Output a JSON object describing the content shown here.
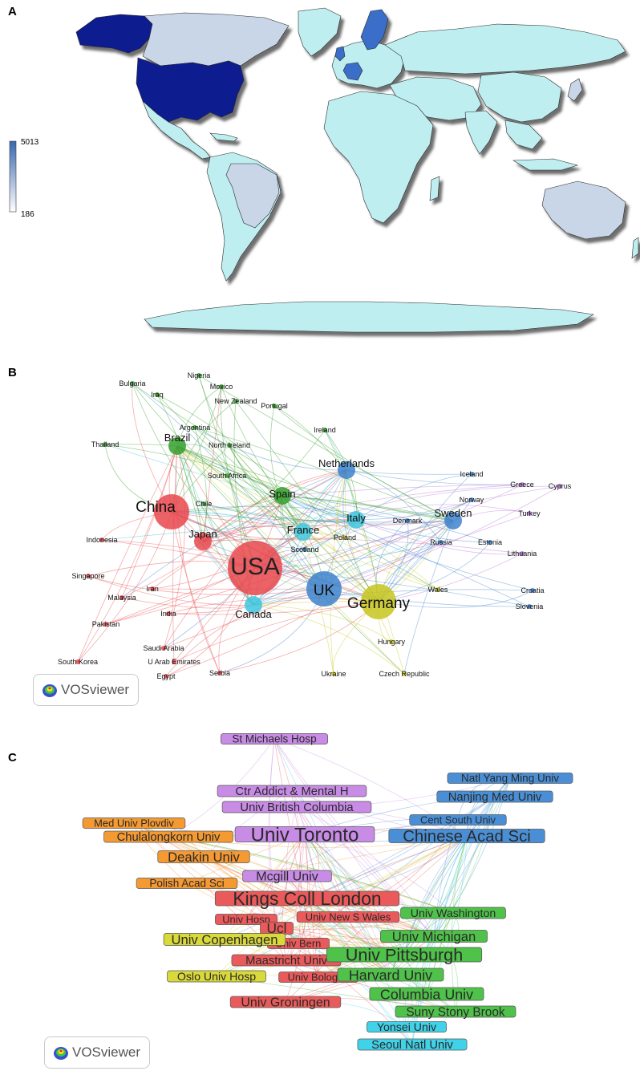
{
  "panels": {
    "a": "A",
    "b": "B",
    "c": "C"
  },
  "map": {
    "legend_max": "5013",
    "legend_min": "186",
    "colors": {
      "ocean": "#ffffff",
      "base": "#bfeef0",
      "light": "#c9d6e8",
      "mid": "#8ea3cc",
      "dark": "#0c1a8f",
      "europe_blue": "#3a6ec8",
      "shadow": "#5a5a5a"
    }
  },
  "vosviewer_label": "VOSviewer",
  "network_b": {
    "colors": {
      "red": "#e8464c",
      "green": "#34a02c",
      "blue": "#3d83cc",
      "cyan": "#3fc6de",
      "yellow": "#c7c51e",
      "purple": "#b56fd8"
    },
    "nodes": [
      {
        "label": "USA",
        "cluster": "red",
        "size": "xl"
      },
      {
        "label": "China",
        "cluster": "red",
        "size": "lg"
      },
      {
        "label": "UK",
        "cluster": "blue",
        "size": "lg"
      },
      {
        "label": "Germany",
        "cluster": "yellow",
        "size": "lg"
      },
      {
        "label": "Canada",
        "cluster": "cyan",
        "size": "md"
      },
      {
        "label": "Netherlands",
        "cluster": "blue",
        "size": "md"
      },
      {
        "label": "Italy",
        "cluster": "cyan",
        "size": "md"
      },
      {
        "label": "France",
        "cluster": "cyan",
        "size": "md"
      },
      {
        "label": "Spain",
        "cluster": "green",
        "size": "md"
      },
      {
        "label": "Brazil",
        "cluster": "green",
        "size": "md"
      },
      {
        "label": "Japan",
        "cluster": "red",
        "size": "md"
      },
      {
        "label": "Sweden",
        "cluster": "blue",
        "size": "md"
      },
      {
        "label": "Denmark",
        "cluster": "blue",
        "size": "sm"
      },
      {
        "label": "Norway",
        "cluster": "blue",
        "size": "sm"
      },
      {
        "label": "Poland",
        "cluster": "yellow",
        "size": "sm"
      },
      {
        "label": "Scotland",
        "cluster": "blue",
        "size": "sm"
      },
      {
        "label": "Russia",
        "cluster": "blue",
        "size": "sm"
      },
      {
        "label": "Wales",
        "cluster": "yellow",
        "size": "sm"
      },
      {
        "label": "Hungary",
        "cluster": "yellow",
        "size": "sm"
      },
      {
        "label": "Czech Republic",
        "cluster": "yellow",
        "size": "sm"
      },
      {
        "label": "Turkey",
        "cluster": "purple",
        "size": "sm"
      },
      {
        "label": "Greece",
        "cluster": "purple",
        "size": "sm"
      },
      {
        "label": "Cyprus",
        "cluster": "purple",
        "size": "sm"
      },
      {
        "label": "Iceland",
        "cluster": "blue",
        "size": "sm"
      },
      {
        "label": "Estonia",
        "cluster": "blue",
        "size": "sm"
      },
      {
        "label": "Lithuania",
        "cluster": "purple",
        "size": "sm"
      },
      {
        "label": "Croatia",
        "cluster": "blue",
        "size": "sm"
      },
      {
        "label": "Slovenia",
        "cluster": "blue",
        "size": "sm"
      },
      {
        "label": "Ireland",
        "cluster": "green",
        "size": "sm"
      },
      {
        "label": "Portugal",
        "cluster": "green",
        "size": "sm"
      },
      {
        "label": "New Zealand",
        "cluster": "green",
        "size": "sm"
      },
      {
        "label": "Mexico",
        "cluster": "green",
        "size": "sm"
      },
      {
        "label": "Nigeria",
        "cluster": "green",
        "size": "sm"
      },
      {
        "label": "Bulgaria",
        "cluster": "green",
        "size": "sm"
      },
      {
        "label": "Iraq",
        "cluster": "green",
        "size": "sm"
      },
      {
        "label": "Argentina",
        "cluster": "green",
        "size": "sm"
      },
      {
        "label": "North Ireland",
        "cluster": "green",
        "size": "sm"
      },
      {
        "label": "Thailand",
        "cluster": "green",
        "size": "sm"
      },
      {
        "label": "South Africa",
        "cluster": "green",
        "size": "sm"
      },
      {
        "label": "Chile",
        "cluster": "green",
        "size": "sm"
      },
      {
        "label": "Indonesia",
        "cluster": "red",
        "size": "sm"
      },
      {
        "label": "Singapore",
        "cluster": "red",
        "size": "sm"
      },
      {
        "label": "Iran",
        "cluster": "red",
        "size": "sm"
      },
      {
        "label": "Malaysia",
        "cluster": "red",
        "size": "sm"
      },
      {
        "label": "Pakistan",
        "cluster": "red",
        "size": "sm"
      },
      {
        "label": "India",
        "cluster": "red",
        "size": "sm"
      },
      {
        "label": "South Korea",
        "cluster": "red",
        "size": "sm"
      },
      {
        "label": "Saudi Arabia",
        "cluster": "red",
        "size": "sm"
      },
      {
        "label": "U Arab Emirates",
        "cluster": "red",
        "size": "sm"
      },
      {
        "label": "Egypt",
        "cluster": "red",
        "size": "sm"
      },
      {
        "label": "Serbia",
        "cluster": "red",
        "size": "sm"
      },
      {
        "label": "Ukraine",
        "cluster": "yellow",
        "size": "sm"
      }
    ]
  },
  "network_c": {
    "colors": {
      "purple": "#c88be6",
      "blue": "#4a8fd6",
      "orange": "#f59a32",
      "red": "#eb5a5a",
      "yellow": "#d9d93a",
      "green": "#4fc24a",
      "cyan": "#3fd2e8"
    },
    "nodes": [
      {
        "label": "St Michaels Hosp",
        "cluster": "purple"
      },
      {
        "label": "Ctr Addict & Mental H",
        "cluster": "purple"
      },
      {
        "label": "Univ British Columbia",
        "cluster": "purple"
      },
      {
        "label": "Univ Toronto",
        "cluster": "purple"
      },
      {
        "label": "Mcgill Univ",
        "cluster": "purple"
      },
      {
        "label": "Natl Yang Ming Univ",
        "cluster": "blue"
      },
      {
        "label": "Nanjing Med Univ",
        "cluster": "blue"
      },
      {
        "label": "Cent South Univ",
        "cluster": "blue"
      },
      {
        "label": "Chinese Acad Sci",
        "cluster": "blue"
      },
      {
        "label": "Med Univ Plovdiv",
        "cluster": "orange"
      },
      {
        "label": "Chulalongkorn Univ",
        "cluster": "orange"
      },
      {
        "label": "Deakin Univ",
        "cluster": "orange"
      },
      {
        "label": "Polish Acad Sci",
        "cluster": "orange"
      },
      {
        "label": "Kings Coll London",
        "cluster": "red"
      },
      {
        "label": "Univ Hosp",
        "cluster": "red"
      },
      {
        "label": "Univ New S Wales",
        "cluster": "red"
      },
      {
        "label": "Ucl",
        "cluster": "red"
      },
      {
        "label": "Univ Bern",
        "cluster": "red"
      },
      {
        "label": "Maastricht Univ",
        "cluster": "red"
      },
      {
        "label": "Univ Bologna",
        "cluster": "red"
      },
      {
        "label": "Univ Groningen",
        "cluster": "red"
      },
      {
        "label": "Univ Copenhagen",
        "cluster": "yellow"
      },
      {
        "label": "Oslo Univ Hosp",
        "cluster": "yellow"
      },
      {
        "label": "Univ Washington",
        "cluster": "green"
      },
      {
        "label": "Univ Michigan",
        "cluster": "green"
      },
      {
        "label": "Univ Pittsburgh",
        "cluster": "green"
      },
      {
        "label": "Harvard Univ",
        "cluster": "green"
      },
      {
        "label": "Columbia Univ",
        "cluster": "green"
      },
      {
        "label": "Suny Stony Brook",
        "cluster": "green"
      },
      {
        "label": "Yonsei Univ",
        "cluster": "cyan"
      },
      {
        "label": "Seoul Natl Univ",
        "cluster": "cyan"
      }
    ]
  }
}
